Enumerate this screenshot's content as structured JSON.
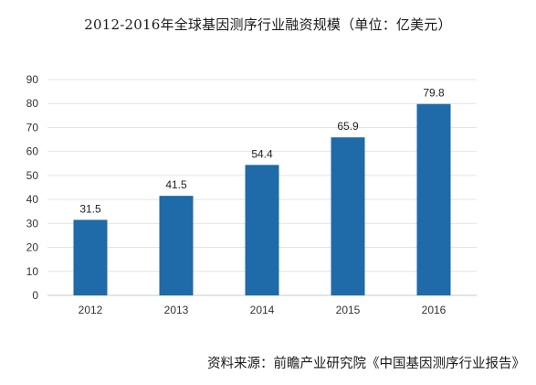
{
  "title": "2012-2016年全球基因测序行业融资规模（单位：亿美元）",
  "source_text": "资料来源：前瞻产业研究院《中国基因测序行业报告》",
  "colors": {
    "bar": "#1f6aa8",
    "grid": "#e4e4e4",
    "axis": "#c8c8c8"
  },
  "chart_data": {
    "type": "bar",
    "title": "2012-2016年全球基因测序行业融资规模（单位：亿美元）",
    "xlabel": "",
    "ylabel": "",
    "categories": [
      "2012",
      "2013",
      "2014",
      "2015",
      "2016"
    ],
    "values": [
      31.5,
      41.5,
      54.4,
      65.9,
      79.8
    ],
    "data_labels": [
      "31.5",
      "41.5",
      "54.4",
      "65.9",
      "79.8"
    ],
    "ylim": [
      0,
      90
    ],
    "yticks": [
      0,
      10,
      20,
      30,
      40,
      50,
      60,
      70,
      80,
      90
    ],
    "grid": true,
    "legend": "none"
  }
}
